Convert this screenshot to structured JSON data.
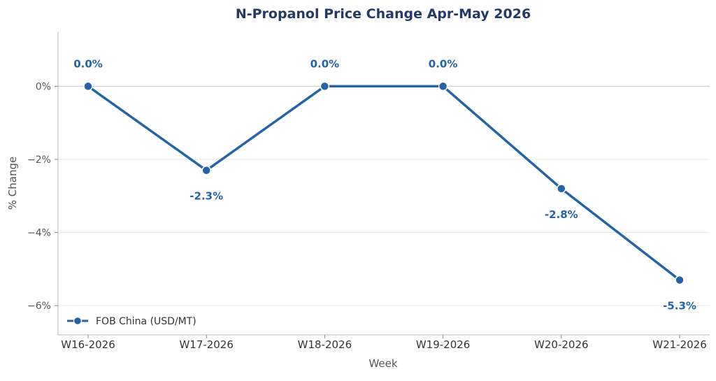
{
  "chart_data": {
    "type": "line",
    "title": "N-Propanol Price Change Apr-May 2026",
    "xlabel": "Week",
    "ylabel": "% Change",
    "categories": [
      "W16-2026",
      "W17-2026",
      "W18-2026",
      "W19-2026",
      "W20-2026",
      "W21-2026"
    ],
    "series": [
      {
        "name": "FOB China (USD/MT)",
        "values": [
          0.0,
          -2.3,
          0.0,
          0.0,
          -2.8,
          -5.3
        ],
        "labels": [
          "0.0%",
          "-2.3%",
          "0.0%",
          "0.0%",
          "-2.8%",
          "-5.3%"
        ],
        "color": "#2563a6"
      }
    ],
    "yticks": [
      0,
      -2,
      -4,
      -6
    ],
    "ytick_labels": [
      "0%",
      "−2%",
      "−4%",
      "−6%"
    ],
    "ylim": [
      -6.8,
      1.5
    ],
    "grid": "horizontal",
    "legend": "bottom-left",
    "colors": {
      "title": "#243a66",
      "line": "#2563a6",
      "grid": "#e6e6e6",
      "zero_line": "#cccccc"
    }
  }
}
